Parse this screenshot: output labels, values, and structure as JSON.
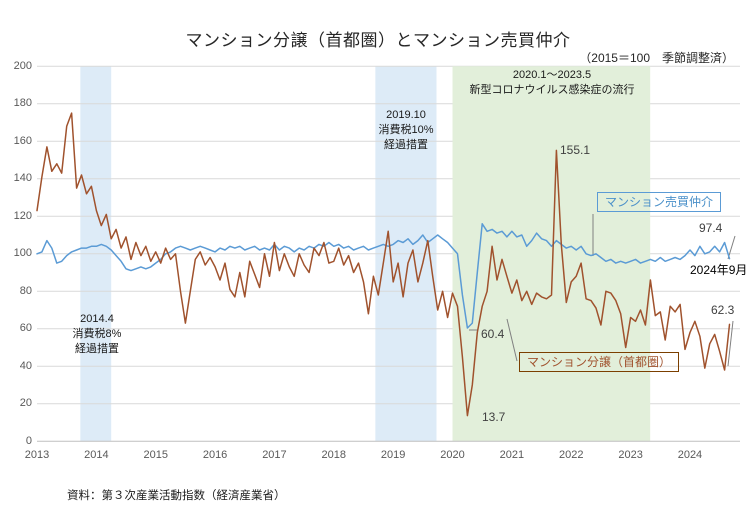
{
  "title": "マンション分譲（首都圏）とマンション売買仲介",
  "subtitle": "（2015＝100　季節調整済）",
  "source": "資料：第３次産業活動指数（経済産業省）",
  "legend": {
    "brokerage": "マンション売買仲介",
    "sales": "マンション分譲（首都圏）"
  },
  "annotations": {
    "tax8": "2014.4\n消費税8%\n経過措置",
    "tax10": "2019.10\n消費税10%\n経過措置",
    "covid": "2020.1～2023.5\n新型コロナウイルス感染症の流行",
    "sales_peak": "155.1",
    "brokerage_end": "97.4",
    "end_date": "2024年9月",
    "brokerage_dip": "60.4",
    "sales_dip": "13.7",
    "sales_end": "62.3"
  },
  "chart_data": {
    "type": "line",
    "title": "マンション分譲（首都圏）とマンション売買仲介",
    "subtitle": "（2015＝100　季節調整済）",
    "x_start": "2013-01",
    "x_end": "2024-09",
    "x_tick_labels": [
      "2013",
      "2014",
      "2015",
      "2016",
      "2017",
      "2018",
      "2019",
      "2020",
      "2021",
      "2022",
      "2023",
      "2024"
    ],
    "y_ticks": [
      0,
      20,
      40,
      60,
      80,
      100,
      120,
      140,
      160,
      180,
      200
    ],
    "ylim": [
      0,
      200
    ],
    "grid": true,
    "grid_color": "#d9d9d9",
    "axis_color": "#bfbfbf",
    "tick_color": "#595959",
    "bands": [
      {
        "label": "2014.4 消費税8% 経過措置",
        "from": 2013.73,
        "to": 2014.25,
        "color": "#DDEBF7",
        "above_grid": false
      },
      {
        "label": "2019.10 消費税10% 経過措置",
        "from": 2018.7,
        "to": 2019.73,
        "color": "#DDEBF7",
        "above_grid": false
      },
      {
        "label": "2020.1～2023.5 新型コロナウイルス感染症の流行",
        "from": 2020.0,
        "to": 2023.33,
        "color": "#E2EFDA",
        "above_grid": true
      }
    ],
    "series": [
      {
        "name": "マンション売買仲介",
        "color": "#5B9BD5",
        "values": [
          100,
          101,
          107,
          103,
          95,
          96,
          99,
          101,
          102,
          103,
          103,
          104,
          104,
          105,
          104,
          102,
          99,
          96,
          92,
          91,
          92,
          93,
          92,
          93,
          95,
          97,
          100,
          101,
          103,
          104,
          103,
          102,
          103,
          104,
          103,
          102,
          101,
          103,
          102,
          104,
          103,
          104,
          102,
          103,
          104,
          102,
          103,
          102,
          105,
          102,
          104,
          103,
          101,
          103,
          102,
          104,
          103,
          105,
          104,
          106,
          104,
          105,
          103,
          104,
          102,
          103,
          104,
          102,
          103,
          104,
          105,
          104,
          105,
          107,
          106,
          108,
          105,
          107,
          110,
          106,
          108,
          110,
          108,
          106,
          103,
          100,
          78,
          60.4,
          63,
          90,
          116,
          112,
          113,
          111,
          112,
          109,
          112,
          109,
          110,
          104,
          107,
          111,
          108,
          107,
          104,
          107,
          105,
          103,
          104,
          102,
          104,
          100,
          99,
          100,
          98,
          96,
          97,
          95,
          96,
          95,
          96,
          97,
          95,
          96,
          97,
          96,
          98,
          96,
          97,
          98,
          97,
          99,
          102,
          99,
          104,
          100,
          101,
          104,
          101,
          106,
          97.4
        ]
      },
      {
        "name": "マンション分譲（首都圏）",
        "color": "#A0522D",
        "values": [
          123,
          141,
          157,
          144,
          148,
          143,
          168,
          175,
          135,
          142,
          132,
          136,
          123,
          115,
          121,
          108,
          113,
          103,
          109,
          97,
          106,
          99,
          104,
          96,
          101,
          95,
          103,
          97,
          100,
          80,
          63,
          80,
          97,
          101,
          94,
          98,
          93,
          86,
          95,
          81,
          77,
          90,
          77,
          96,
          89,
          82,
          100,
          88,
          106,
          91,
          100,
          93,
          88,
          100,
          94,
          90,
          103,
          99,
          106,
          95,
          96,
          103,
          94,
          99,
          90,
          95,
          85,
          68,
          88,
          78,
          95,
          112,
          85,
          95,
          77,
          95,
          102,
          85,
          95,
          107,
          88,
          70,
          80,
          66,
          79,
          72,
          45,
          13.7,
          30,
          58,
          72,
          80,
          104,
          86,
          97,
          88,
          79,
          86,
          75,
          80,
          73,
          79,
          77,
          76,
          78,
          155.1,
          105,
          74,
          85,
          88,
          95,
          76,
          75,
          71,
          62,
          80,
          79,
          75,
          68,
          50,
          66,
          64,
          70,
          62,
          86,
          67,
          69,
          54,
          72,
          69,
          73,
          49,
          58,
          64,
          56,
          39,
          52,
          57,
          48,
          38,
          62.3
        ]
      }
    ],
    "labeled_points": [
      {
        "series": "マンション分譲（首都圏）",
        "x": "2021-10",
        "value": 155.1
      },
      {
        "series": "マンション分譲（首都圏）",
        "x": "2020-04",
        "value": 13.7
      },
      {
        "series": "マンション分譲（首都圏）",
        "x": "2024-09",
        "value": 62.3
      },
      {
        "series": "マンション売買仲介",
        "x": "2020-04",
        "value": 60.4
      },
      {
        "series": "マンション売買仲介",
        "x": "2024-09",
        "value": 97.4
      }
    ]
  }
}
